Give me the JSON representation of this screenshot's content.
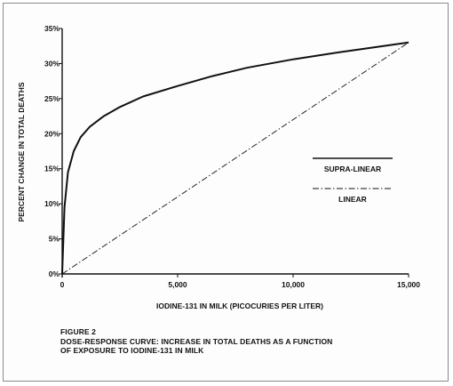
{
  "chart_data": {
    "type": "line",
    "title": "",
    "xlabel": "IODINE-131 IN MILK (PICOCURIES PER LITER)",
    "ylabel": "PERCENT CHANGE IN TOTAL DEATHS",
    "xlim": [
      0,
      15000
    ],
    "ylim": [
      0,
      35
    ],
    "x_ticks": [
      0,
      5000,
      10000,
      15000
    ],
    "x_tick_labels": [
      "0",
      "5,000",
      "10,000",
      "15,000"
    ],
    "y_ticks": [
      0,
      5,
      10,
      15,
      20,
      25,
      30,
      35
    ],
    "y_tick_labels": [
      "0%",
      "5%",
      "10%",
      "15%",
      "20%",
      "25%",
      "30%",
      "35%"
    ],
    "grid": false,
    "legend_position": "right",
    "series": [
      {
        "name": "SUPRA-LINEAR",
        "style": "solid",
        "x": [
          0,
          100,
          250,
          500,
          800,
          1200,
          1800,
          2500,
          3500,
          5000,
          6500,
          8000,
          10000,
          12000,
          13500,
          15000
        ],
        "y": [
          0,
          9.5,
          14.5,
          17.5,
          19.5,
          21,
          22.5,
          23.8,
          25.3,
          26.8,
          28.2,
          29.4,
          30.6,
          31.6,
          32.3,
          33
        ]
      },
      {
        "name": "LINEAR",
        "style": "dash-dot",
        "x": [
          0,
          15000
        ],
        "y": [
          0,
          33
        ]
      }
    ]
  },
  "caption": {
    "line1": "FIGURE 2",
    "line2": "DOSE-RESPONSE CURVE:  INCREASE IN TOTAL DEATHS AS A FUNCTION",
    "line3": "OF EXPOSURE TO IODINE-131 IN MILK"
  }
}
